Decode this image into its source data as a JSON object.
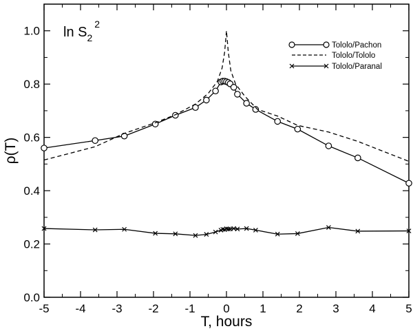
{
  "chart_data": {
    "type": "line",
    "title": "",
    "xlabel": "T, hours",
    "ylabel": "ρ(T)",
    "annotation": {
      "base": "ln S",
      "sub": "2",
      "sup": "2"
    },
    "xlim": [
      -5,
      5
    ],
    "ylim": [
      0,
      1.1
    ],
    "x_ticks": [
      -5,
      -4,
      -3,
      -2,
      -1,
      0,
      1,
      2,
      3,
      4,
      5
    ],
    "y_ticks": [
      0.0,
      0.2,
      0.4,
      0.6,
      0.8,
      1.0
    ],
    "y_tick_labels": [
      "0.0",
      "0.2",
      "0.4",
      "0.6",
      "0.8",
      "1.0"
    ],
    "grid": false,
    "legend_position": "top-right",
    "series": [
      {
        "name": "Tololo/Pachon",
        "style": "solid",
        "marker": "circle",
        "x": [
          -5.0,
          -3.6,
          -2.8,
          -1.95,
          -1.4,
          -0.85,
          -0.55,
          -0.3,
          -0.15,
          -0.1,
          -0.05,
          0.0,
          0.05,
          0.1,
          0.2,
          0.3,
          0.55,
          0.8,
          1.4,
          1.95,
          2.8,
          3.6,
          5.0
        ],
        "y": [
          0.56,
          0.588,
          0.605,
          0.65,
          0.683,
          0.712,
          0.74,
          0.774,
          0.808,
          0.811,
          0.811,
          0.809,
          0.806,
          0.801,
          0.788,
          0.762,
          0.728,
          0.705,
          0.66,
          0.631,
          0.568,
          0.523,
          0.428
        ]
      },
      {
        "name": "Tololo/Tololo",
        "style": "dashed",
        "marker": "none",
        "x": [
          -5.0,
          -3.6,
          -2.8,
          -1.95,
          -1.4,
          -0.85,
          -0.5,
          -0.25,
          -0.12,
          -0.05,
          0.0,
          0.05,
          0.12,
          0.25,
          0.5,
          0.85,
          1.4,
          1.95,
          2.8,
          3.6,
          5.0
        ],
        "y": [
          0.515,
          0.565,
          0.615,
          0.655,
          0.685,
          0.725,
          0.765,
          0.81,
          0.86,
          0.92,
          1.0,
          0.92,
          0.85,
          0.8,
          0.755,
          0.705,
          0.68,
          0.645,
          0.62,
          0.585,
          0.51
        ]
      },
      {
        "name": "Tololo/Paranal",
        "style": "solid",
        "marker": "x",
        "x": [
          -5.0,
          -3.6,
          -2.8,
          -1.95,
          -1.4,
          -0.85,
          -0.55,
          -0.3,
          -0.15,
          -0.1,
          -0.05,
          0.0,
          0.05,
          0.1,
          0.2,
          0.3,
          0.55,
          0.8,
          1.4,
          1.95,
          2.8,
          3.6,
          5.0
        ],
        "y": [
          0.258,
          0.253,
          0.255,
          0.24,
          0.238,
          0.232,
          0.236,
          0.245,
          0.252,
          0.255,
          0.254,
          0.257,
          0.256,
          0.256,
          0.258,
          0.256,
          0.258,
          0.252,
          0.237,
          0.239,
          0.262,
          0.248,
          0.249
        ]
      }
    ]
  }
}
